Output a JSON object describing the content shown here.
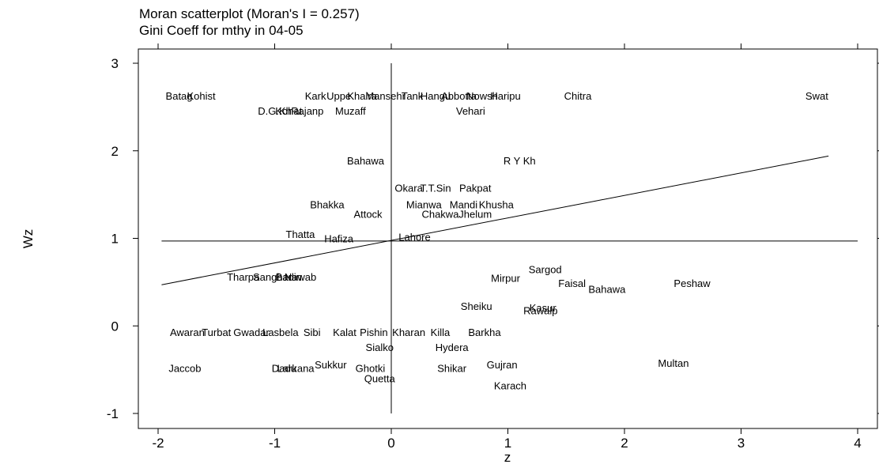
{
  "title_line1": "Moran scatterplot (Moran's I = 0.257)",
  "title_line2": "Gini Coeff for mthy in 04-05",
  "chart_data": {
    "type": "scatter",
    "title": "Moran scatterplot (Moran's I = 0.257)",
    "subtitle": "Gini Coeff for mthy in 04-05",
    "xlabel": "z",
    "ylabel": "Wz",
    "xlim": [
      -2.2,
      4.1
    ],
    "ylim": [
      -1.1,
      3.1
    ],
    "xticks": [
      -2,
      -1,
      0,
      1,
      2,
      3,
      4
    ],
    "yticks": [
      -1,
      0,
      1,
      2,
      3
    ],
    "xtick_labels": [
      "-2",
      "-1",
      "0",
      "1",
      "2",
      "3",
      "4"
    ],
    "ytick_labels": [
      "-1",
      "0",
      "1",
      "2",
      "3"
    ],
    "moran_i": 0.257,
    "mean_wz": 0.97,
    "mean_z": 0,
    "fit_line": {
      "x": [
        -1.97,
        3.75
      ],
      "y": [
        0.47,
        1.94
      ]
    },
    "points": [
      {
        "label": "Batag",
        "x": -1.82,
        "y": 2.63
      },
      {
        "label": "Kohist",
        "x": -1.63,
        "y": 2.63
      },
      {
        "label": "Kark",
        "x": -0.65,
        "y": 2.63
      },
      {
        "label": "Uppe",
        "x": -0.45,
        "y": 2.63
      },
      {
        "label": "Khaira",
        "x": -0.25,
        "y": 2.63
      },
      {
        "label": "Mansehr",
        "x": -0.05,
        "y": 2.63
      },
      {
        "label": "Tank",
        "x": 0.18,
        "y": 2.63
      },
      {
        "label": "Hangu",
        "x": 0.38,
        "y": 2.63
      },
      {
        "label": "Abbotta",
        "x": 0.58,
        "y": 2.63
      },
      {
        "label": "Nowsh",
        "x": 0.78,
        "y": 2.63
      },
      {
        "label": "Haripu",
        "x": 0.98,
        "y": 2.63
      },
      {
        "label": "Chitra",
        "x": 1.6,
        "y": 2.63
      },
      {
        "label": "Swat",
        "x": 3.65,
        "y": 2.63
      },
      {
        "label": "D.G.Kh",
        "x": -1.0,
        "y": 2.46
      },
      {
        "label": "Kohat",
        "x": -0.88,
        "y": 2.46
      },
      {
        "label": "Rajanp",
        "x": -0.72,
        "y": 2.46
      },
      {
        "label": "Muzaff",
        "x": -0.35,
        "y": 2.46
      },
      {
        "label": "Vehari",
        "x": 0.68,
        "y": 2.46
      },
      {
        "label": "Bahawa",
        "x": -0.22,
        "y": 1.89
      },
      {
        "label": "R Y Kh",
        "x": 1.1,
        "y": 1.89
      },
      {
        "label": "Okara",
        "x": 0.15,
        "y": 1.58
      },
      {
        "label": "T.T.Sin",
        "x": 0.38,
        "y": 1.58
      },
      {
        "label": "Pakpat",
        "x": 0.72,
        "y": 1.58
      },
      {
        "label": "Bhakka",
        "x": -0.55,
        "y": 1.39
      },
      {
        "label": "Mianwa",
        "x": 0.28,
        "y": 1.39
      },
      {
        "label": "Mandi",
        "x": 0.62,
        "y": 1.39
      },
      {
        "label": "Khusha",
        "x": 0.9,
        "y": 1.39
      },
      {
        "label": "Attock",
        "x": -0.2,
        "y": 1.28
      },
      {
        "label": "Chakwa",
        "x": 0.42,
        "y": 1.28
      },
      {
        "label": "Jhelum",
        "x": 0.72,
        "y": 1.28
      },
      {
        "label": "Thatta",
        "x": -0.78,
        "y": 1.05
      },
      {
        "label": "Hafiza",
        "x": -0.45,
        "y": 1.0
      },
      {
        "label": "Lahore",
        "x": 0.2,
        "y": 1.02
      },
      {
        "label": "Sargod",
        "x": 1.32,
        "y": 0.65
      },
      {
        "label": "Mirpur",
        "x": 0.98,
        "y": 0.55
      },
      {
        "label": "Faisal",
        "x": 1.55,
        "y": 0.49
      },
      {
        "label": "Bahawa",
        "x": 1.85,
        "y": 0.42
      },
      {
        "label": "Peshaw",
        "x": 2.58,
        "y": 0.49
      },
      {
        "label": "Tharpa",
        "x": -1.27,
        "y": 0.56
      },
      {
        "label": "Sanghar",
        "x": -1.02,
        "y": 0.56
      },
      {
        "label": "Badin",
        "x": -0.88,
        "y": 0.56
      },
      {
        "label": "Nawab",
        "x": -0.78,
        "y": 0.56
      },
      {
        "label": "Sheiku",
        "x": 0.73,
        "y": 0.23
      },
      {
        "label": "Kasur",
        "x": 1.3,
        "y": 0.21
      },
      {
        "label": "Rawalp",
        "x": 1.28,
        "y": 0.18
      },
      {
        "label": "Awaran",
        "x": -1.75,
        "y": -0.07
      },
      {
        "label": "Turbat",
        "x": -1.5,
        "y": -0.07
      },
      {
        "label": "Gwadar",
        "x": -1.2,
        "y": -0.07
      },
      {
        "label": "Lasbela",
        "x": -0.95,
        "y": -0.07
      },
      {
        "label": "Sibi",
        "x": -0.68,
        "y": -0.07
      },
      {
        "label": "Kalat",
        "x": -0.4,
        "y": -0.07
      },
      {
        "label": "Pishin",
        "x": -0.15,
        "y": -0.07
      },
      {
        "label": "Kharan",
        "x": 0.15,
        "y": -0.07
      },
      {
        "label": "Killa",
        "x": 0.42,
        "y": -0.07
      },
      {
        "label": "Barkha",
        "x": 0.8,
        "y": -0.07
      },
      {
        "label": "Sialko",
        "x": -0.1,
        "y": -0.24
      },
      {
        "label": "Hydera",
        "x": 0.52,
        "y": -0.24
      },
      {
        "label": "Jaccob",
        "x": -1.77,
        "y": -0.48
      },
      {
        "label": "Dadu",
        "x": -0.92,
        "y": -0.48
      },
      {
        "label": "Larkana",
        "x": -0.82,
        "y": -0.48
      },
      {
        "label": "Sukkur",
        "x": -0.52,
        "y": -0.44
      },
      {
        "label": "Ghotki",
        "x": -0.18,
        "y": -0.48
      },
      {
        "label": "Shikar",
        "x": 0.52,
        "y": -0.48
      },
      {
        "label": "Gujran",
        "x": 0.95,
        "y": -0.44
      },
      {
        "label": "Multan",
        "x": 2.42,
        "y": -0.42
      },
      {
        "label": "Quetta",
        "x": -0.1,
        "y": -0.6
      },
      {
        "label": "Karach",
        "x": 1.02,
        "y": -0.68
      }
    ]
  }
}
